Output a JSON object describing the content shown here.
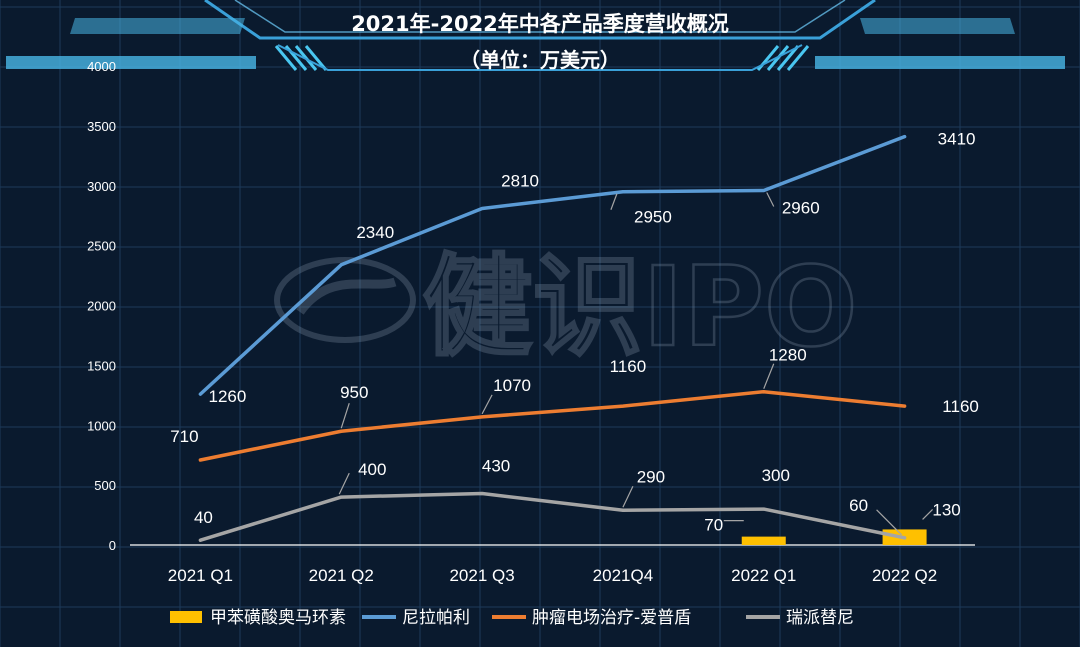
{
  "chart_data": {
    "type": "line",
    "title": "2021年-2022年中各产品季度营收概况",
    "subtitle": "（单位：万美元）",
    "categories": [
      "2021 Q1",
      "2021 Q2",
      "2021 Q3",
      "2021Q4",
      "2022 Q1",
      "2022 Q2"
    ],
    "ylim": [
      0,
      4000
    ],
    "yticks": [
      0,
      500,
      1000,
      1500,
      2000,
      2500,
      3000,
      3500,
      4000
    ],
    "grid": true,
    "legend_placement": "bottom",
    "watermark": "健识IPO",
    "series": [
      {
        "name": "甲苯磺酸奥马环素",
        "type": "bar",
        "color": "#ffc000",
        "values": [
          null,
          null,
          null,
          null,
          70,
          130
        ]
      },
      {
        "name": "尼拉帕利",
        "type": "line",
        "color": "#5b9bd5",
        "values": [
          1260,
          2340,
          2810,
          2950,
          2960,
          3410
        ]
      },
      {
        "name": "肿瘤电场治疗-爱普盾",
        "type": "line",
        "color": "#ed7d31",
        "values": [
          710,
          950,
          1070,
          1160,
          1280,
          1160
        ]
      },
      {
        "name": "瑞派替尼",
        "type": "line",
        "color": "#a5a5a5",
        "values": [
          40,
          400,
          430,
          290,
          300,
          60
        ]
      }
    ]
  }
}
